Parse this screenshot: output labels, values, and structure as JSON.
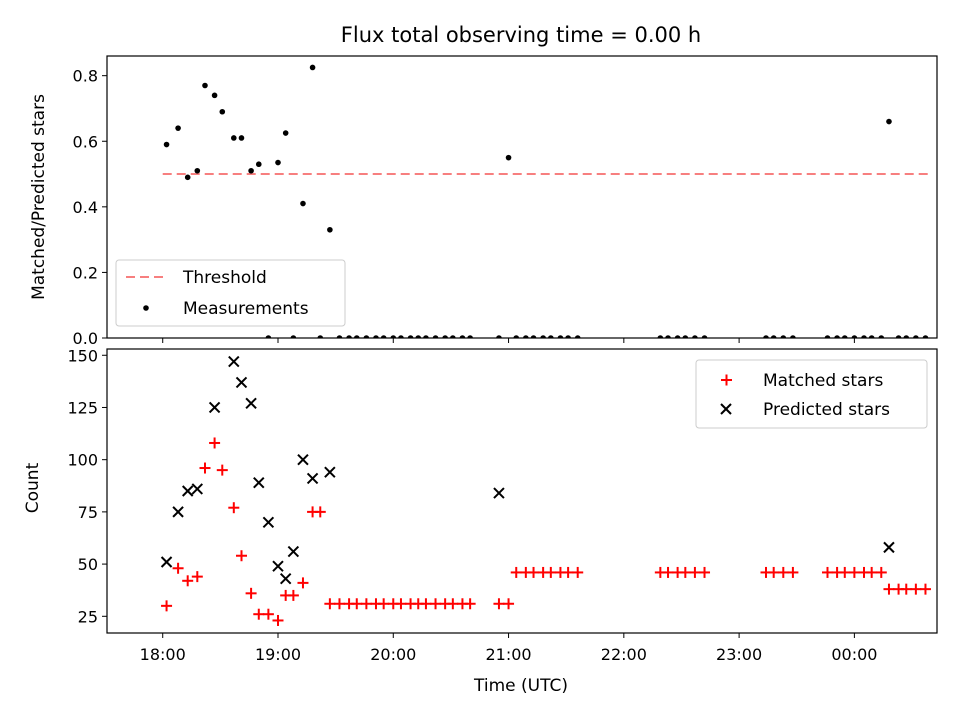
{
  "chart_data": [
    {
      "type": "scatter",
      "title": "Flux total observing time = 0.00 h",
      "xlabel": "",
      "ylabel": "Matched/Predicted stars",
      "ylim": [
        0,
        0.86
      ],
      "yticks": [
        "0.0",
        "0.2",
        "0.4",
        "0.6",
        "0.8"
      ],
      "ytick_values": [
        0,
        0.2,
        0.4,
        0.6,
        0.8
      ],
      "legend_position": "lower-left",
      "threshold": {
        "name": "Threshold",
        "value": 0.5,
        "x_range": [
          "18:00",
          "00:39"
        ],
        "color": "#f77f7f",
        "style": "dashed"
      },
      "series": [
        {
          "name": "Measurements",
          "color": "#000000",
          "marker": "dot",
          "x": [
            "18:02",
            "18:08",
            "18:13",
            "18:18",
            "18:22",
            "18:27",
            "18:31",
            "18:37",
            "18:41",
            "18:46",
            "18:50",
            "18:55",
            "19:00",
            "19:04",
            "19:08",
            "19:13",
            "19:18",
            "19:22",
            "19:27",
            "19:32",
            "19:37",
            "19:41",
            "19:46",
            "19:51",
            "19:55",
            "20:00",
            "20:04",
            "20:09",
            "20:13",
            "20:17",
            "20:22",
            "20:27",
            "20:31",
            "20:36",
            "20:40",
            "20:55",
            "21:00",
            "21:04",
            "21:09",
            "21:13",
            "21:18",
            "21:22",
            "21:27",
            "21:31",
            "21:36",
            "22:19",
            "22:23",
            "22:28",
            "22:32",
            "22:37",
            "22:42",
            "23:14",
            "23:18",
            "23:23",
            "23:28",
            "23:46",
            "23:51",
            "23:55",
            "00:00",
            "00:05",
            "00:09",
            "00:14",
            "00:18",
            "00:23",
            "00:27",
            "00:32",
            "00:37"
          ],
          "y": [
            0.59,
            0.64,
            0.49,
            0.51,
            0.77,
            0.74,
            0.69,
            0.61,
            0.61,
            0.51,
            0.53,
            0.0,
            0.535,
            0.625,
            0.0,
            0.41,
            0.825,
            0.0,
            0.33,
            0.0,
            0.0,
            0.0,
            0.0,
            0.0,
            0.0,
            0.0,
            0.0,
            0.0,
            0.0,
            0.0,
            0.0,
            0.0,
            0.0,
            0.0,
            0.0,
            0.0,
            0.55,
            0.0,
            0.0,
            0.0,
            0.0,
            0.0,
            0.0,
            0.0,
            0.0,
            0.0,
            0.0,
            0.0,
            0.0,
            0.0,
            0.0,
            0.0,
            0.0,
            0.0,
            0.0,
            0.0,
            0.0,
            0.0,
            0.0,
            0.0,
            0.0,
            0.0,
            0.66,
            0.0,
            0.0,
            0.0,
            0.0
          ]
        }
      ]
    },
    {
      "type": "scatter",
      "title": "",
      "xlabel": "Time (UTC)",
      "ylabel": "Count",
      "ylim": [
        17,
        153
      ],
      "yticks": [
        "25",
        "50",
        "75",
        "100",
        "125",
        "150"
      ],
      "ytick_values": [
        25,
        50,
        75,
        100,
        125,
        150
      ],
      "xticks": [
        "18:00",
        "19:00",
        "20:00",
        "21:00",
        "22:00",
        "23:00",
        "00:00"
      ],
      "legend_position": "top-right",
      "series": [
        {
          "name": "Matched stars",
          "color": "#ff0000",
          "marker": "plus",
          "x": [
            "18:02",
            "18:08",
            "18:13",
            "18:18",
            "18:22",
            "18:27",
            "18:31",
            "18:37",
            "18:41",
            "18:46",
            "18:50",
            "18:55",
            "19:00",
            "19:04",
            "19:08",
            "19:13",
            "19:18",
            "19:22",
            "19:27",
            "19:32",
            "19:37",
            "19:41",
            "19:46",
            "19:51",
            "19:55",
            "20:00",
            "20:04",
            "20:09",
            "20:13",
            "20:17",
            "20:22",
            "20:27",
            "20:31",
            "20:36",
            "20:40",
            "20:55",
            "21:00",
            "21:04",
            "21:09",
            "21:13",
            "21:18",
            "21:22",
            "21:27",
            "21:31",
            "21:36",
            "22:19",
            "22:23",
            "22:28",
            "22:32",
            "22:37",
            "22:42",
            "23:14",
            "23:18",
            "23:23",
            "23:28",
            "23:46",
            "23:51",
            "23:55",
            "00:00",
            "00:05",
            "00:09",
            "00:14",
            "00:18",
            "00:23",
            "00:27",
            "00:32",
            "00:37"
          ],
          "y": [
            30,
            48,
            42,
            44,
            96,
            108,
            95,
            77,
            54,
            36,
            26,
            26,
            23,
            35,
            35,
            41,
            75,
            75,
            31,
            31,
            31,
            31,
            31,
            31,
            31,
            31,
            31,
            31,
            31,
            31,
            31,
            31,
            31,
            31,
            31,
            31,
            31,
            46,
            46,
            46,
            46,
            46,
            46,
            46,
            46,
            46,
            46,
            46,
            46,
            46,
            46,
            46,
            46,
            46,
            46,
            46,
            46,
            46,
            46,
            46,
            46,
            46,
            38,
            38,
            38,
            38,
            38
          ]
        },
        {
          "name": "Predicted stars",
          "color": "#000000",
          "marker": "x",
          "x": [
            "18:02",
            "18:08",
            "18:13",
            "18:18",
            "18:27",
            "18:37",
            "18:41",
            "18:46",
            "18:50",
            "18:55",
            "19:00",
            "19:04",
            "19:08",
            "19:13",
            "19:18",
            "19:27",
            "20:55",
            "00:18"
          ],
          "y": [
            51,
            75,
            85,
            86,
            125,
            147,
            137,
            127,
            89,
            70,
            49,
            43,
            56,
            100,
            91,
            94,
            84,
            58
          ]
        }
      ]
    }
  ]
}
